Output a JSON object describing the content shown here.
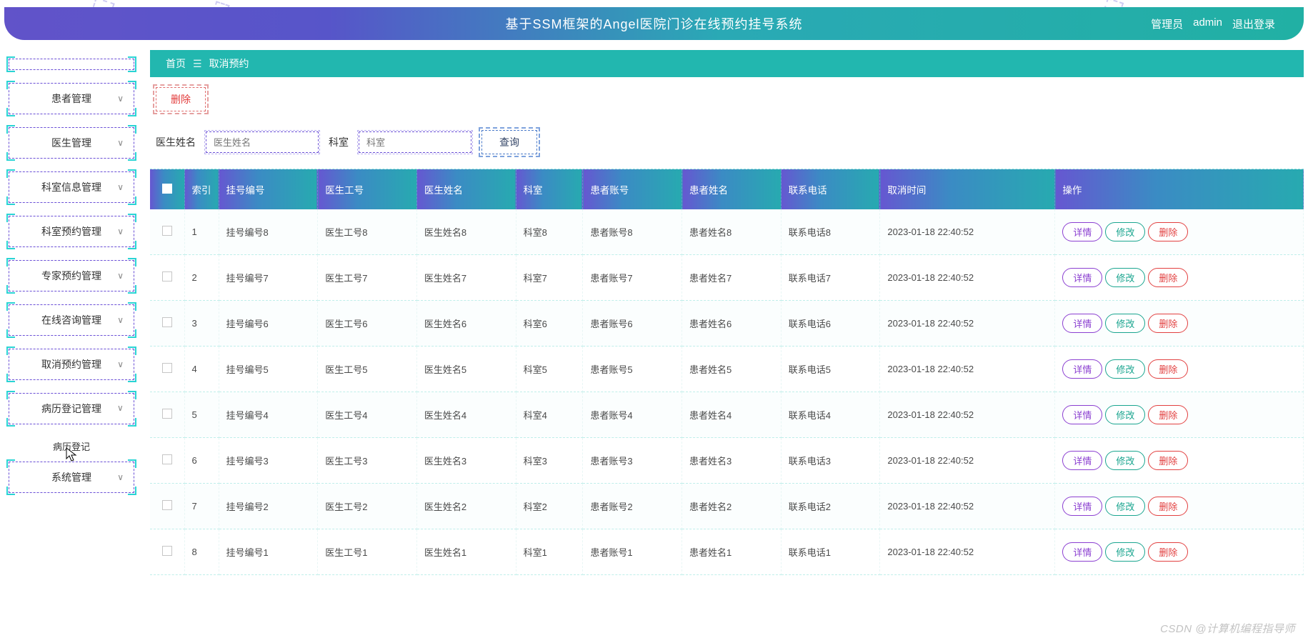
{
  "header": {
    "title": "基于SSM框架的Angel医院门诊在线预约挂号系统",
    "role": "管理员",
    "user": "admin",
    "logout": "退出登录"
  },
  "sidebar": {
    "items": [
      {
        "label": "患者管理",
        "chev": "∨"
      },
      {
        "label": "医生管理",
        "chev": "∨"
      },
      {
        "label": "科室信息管理",
        "chev": "∨"
      },
      {
        "label": "科室预约管理",
        "chev": "∨"
      },
      {
        "label": "专家预约管理",
        "chev": "∨"
      },
      {
        "label": "在线咨询管理",
        "chev": "∨"
      },
      {
        "label": "取消预约管理",
        "chev": "∨"
      },
      {
        "label": "病历登记管理",
        "chev": "∧",
        "open": true
      },
      {
        "label": "系统管理",
        "chev": "∨"
      }
    ],
    "subitem": "病历登记"
  },
  "breadcrumb": {
    "home": "首页",
    "sep": "☰",
    "current": "取消预约"
  },
  "toolbar": {
    "delete": "删除"
  },
  "search": {
    "doctor_label": "医生姓名",
    "doctor_placeholder": "医生姓名",
    "dept_label": "科室",
    "dept_placeholder": "科室",
    "query": "查询"
  },
  "table": {
    "cols": [
      "",
      "索引",
      "挂号编号",
      "医生工号",
      "医生姓名",
      "科室",
      "患者账号",
      "患者姓名",
      "联系电话",
      "取消时间",
      "操作"
    ],
    "actions": {
      "detail": "详情",
      "edit": "修改",
      "del": "删除"
    },
    "rows": [
      {
        "idx": "1",
        "reg": "挂号编号8",
        "docid": "医生工号8",
        "docname": "医生姓名8",
        "dept": "科室8",
        "pacct": "患者账号8",
        "pname": "患者姓名8",
        "tel": "联系电话8",
        "time": "2023-01-18 22:40:52"
      },
      {
        "idx": "2",
        "reg": "挂号编号7",
        "docid": "医生工号7",
        "docname": "医生姓名7",
        "dept": "科室7",
        "pacct": "患者账号7",
        "pname": "患者姓名7",
        "tel": "联系电话7",
        "time": "2023-01-18 22:40:52"
      },
      {
        "idx": "3",
        "reg": "挂号编号6",
        "docid": "医生工号6",
        "docname": "医生姓名6",
        "dept": "科室6",
        "pacct": "患者账号6",
        "pname": "患者姓名6",
        "tel": "联系电话6",
        "time": "2023-01-18 22:40:52"
      },
      {
        "idx": "4",
        "reg": "挂号编号5",
        "docid": "医生工号5",
        "docname": "医生姓名5",
        "dept": "科室5",
        "pacct": "患者账号5",
        "pname": "患者姓名5",
        "tel": "联系电话5",
        "time": "2023-01-18 22:40:52"
      },
      {
        "idx": "5",
        "reg": "挂号编号4",
        "docid": "医生工号4",
        "docname": "医生姓名4",
        "dept": "科室4",
        "pacct": "患者账号4",
        "pname": "患者姓名4",
        "tel": "联系电话4",
        "time": "2023-01-18 22:40:52"
      },
      {
        "idx": "6",
        "reg": "挂号编号3",
        "docid": "医生工号3",
        "docname": "医生姓名3",
        "dept": "科室3",
        "pacct": "患者账号3",
        "pname": "患者姓名3",
        "tel": "联系电话3",
        "time": "2023-01-18 22:40:52"
      },
      {
        "idx": "7",
        "reg": "挂号编号2",
        "docid": "医生工号2",
        "docname": "医生姓名2",
        "dept": "科室2",
        "pacct": "患者账号2",
        "pname": "患者姓名2",
        "tel": "联系电话2",
        "time": "2023-01-18 22:40:52"
      },
      {
        "idx": "8",
        "reg": "挂号编号1",
        "docid": "医生工号1",
        "docname": "医生姓名1",
        "dept": "科室1",
        "pacct": "患者账号1",
        "pname": "患者姓名1",
        "tel": "联系电话1",
        "time": "2023-01-18 22:40:52"
      }
    ]
  },
  "watermark": "CSDN @计算机编程指导师",
  "colors": {
    "header_grad_from": "#6153c9",
    "header_grad_to": "#21b0a4",
    "crumb_bg": "#22b7af",
    "th_grad_from": "#6657d1",
    "th_grad_to": "#27aab0",
    "dash_purple": "#6a4fd6",
    "dash_cyan": "#2ad4d4",
    "pill_detail": "#8b3fd1",
    "pill_edit": "#1aa58f",
    "pill_del": "#e24040",
    "row_border": "#bfeeea"
  }
}
